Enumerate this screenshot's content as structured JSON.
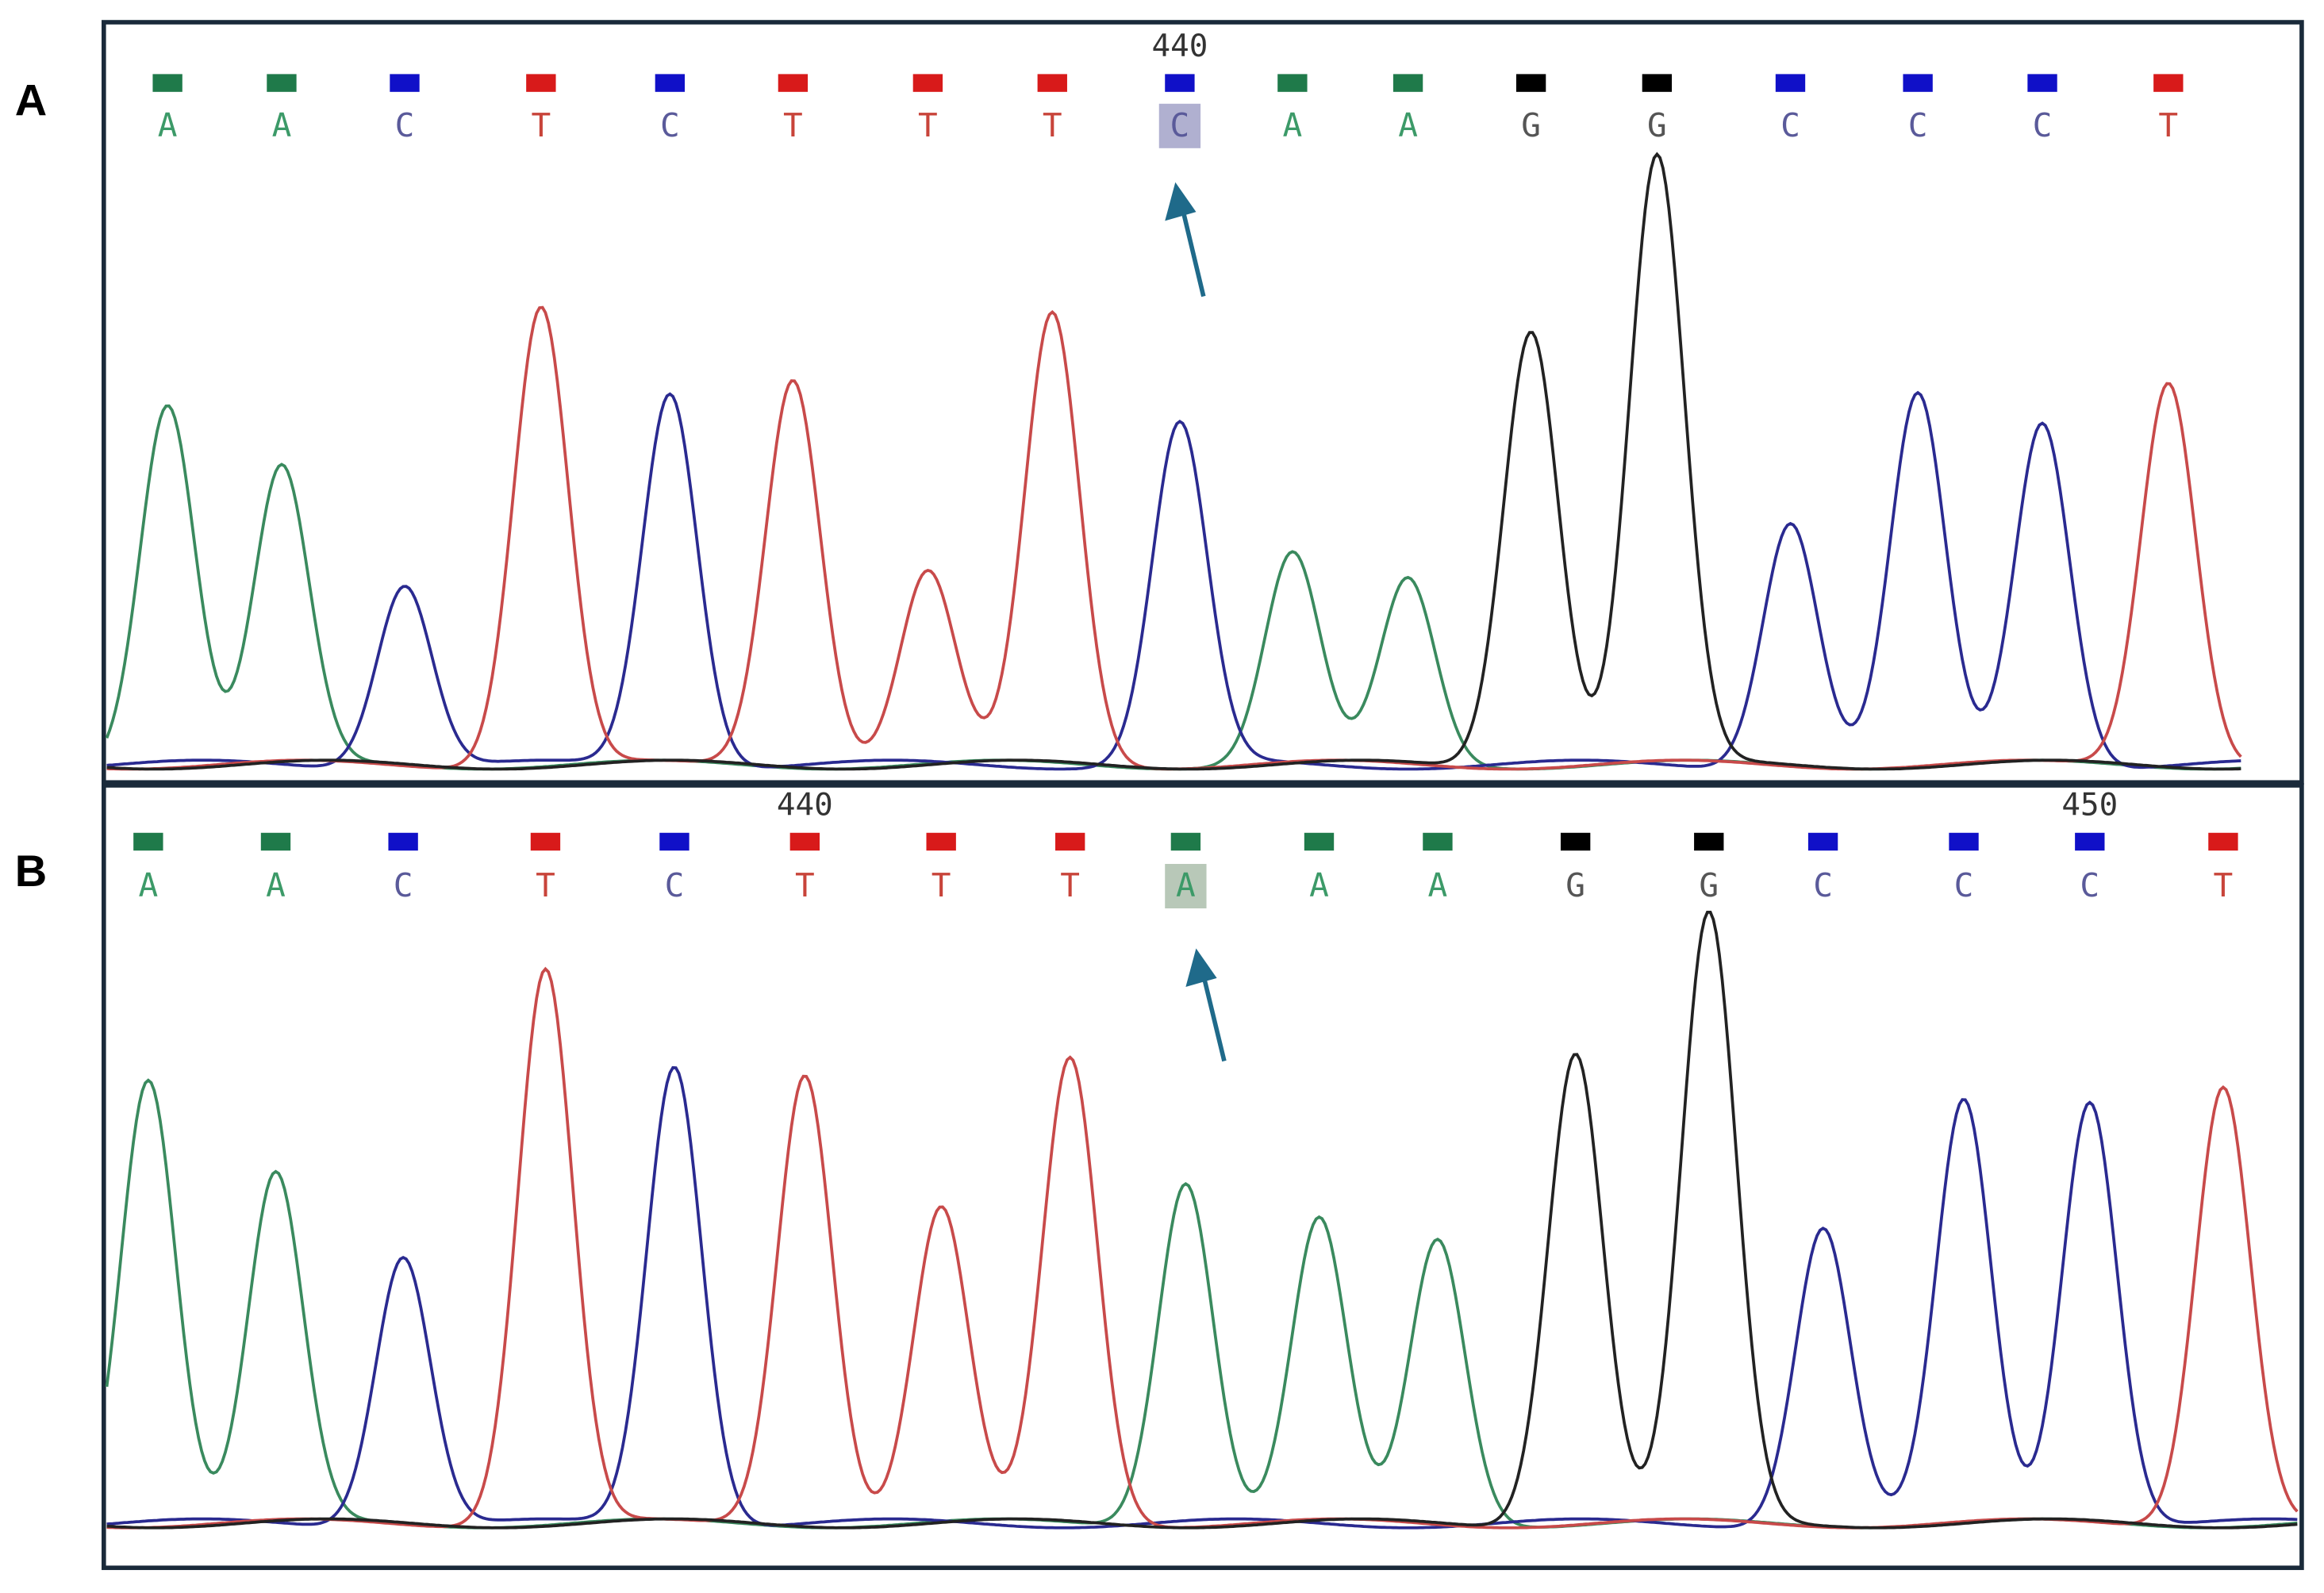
{
  "panels": [
    {
      "label": "A",
      "positions": [
        "440"
      ],
      "bases": [
        "A",
        "A",
        "C",
        "T",
        "C",
        "T",
        "T",
        "T",
        "C",
        "A",
        "A",
        "G",
        "G",
        "C",
        "C",
        "C",
        "T"
      ]
    },
    {
      "label": "B",
      "positions": [
        "440",
        "450"
      ],
      "bases": [
        "A",
        "A",
        "C",
        "T",
        "C",
        "T",
        "T",
        "T",
        "A",
        "A",
        "A",
        "G",
        "G",
        "C",
        "C",
        "C",
        "T"
      ]
    }
  ]
}
